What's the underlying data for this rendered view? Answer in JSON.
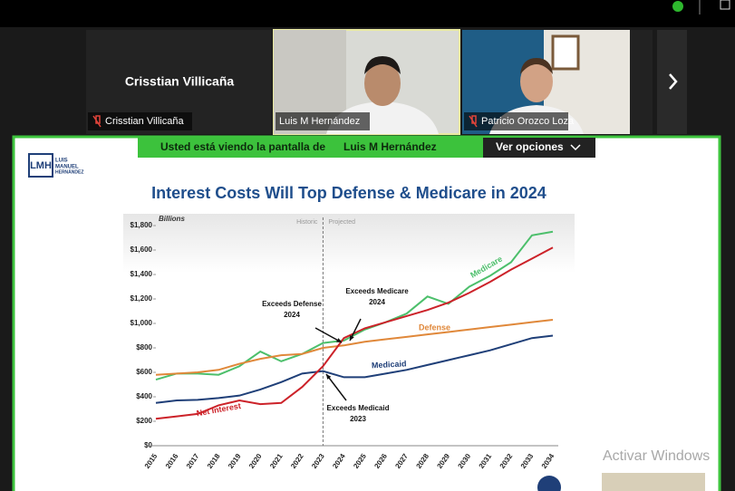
{
  "meeting": {
    "participants": [
      {
        "display_name": "Crisstian Villicaña",
        "label": "Crisstian Villicaña"
      },
      {
        "label": "Luis M Hernández"
      },
      {
        "label": "Patricio Orozco Loza"
      }
    ],
    "banner": {
      "text": "Usted está viendo la pantalla de",
      "presenter": "Luis M Hernández",
      "button": "Ver opciones"
    },
    "logo": {
      "mark": "LMH",
      "lines": [
        "LUIS",
        "MANUEL",
        "HERNÁNDEZ"
      ]
    },
    "watermark": "Activar Windows"
  },
  "chart_data": {
    "type": "line",
    "title": "Interest Costs Will Top Defense & Medicare in 2024",
    "y_unit": "Billions",
    "divider": {
      "at": "2023",
      "left": "Historic",
      "right": "Projected"
    },
    "categories": [
      "2015",
      "2016",
      "2017",
      "2018",
      "2019",
      "2020",
      "2021",
      "2022",
      "2023",
      "2024",
      "2025",
      "2026",
      "2027",
      "2028",
      "2029",
      "2030",
      "2031",
      "2032",
      "2033",
      "2034"
    ],
    "ylim": [
      0,
      1800
    ],
    "yticks": [
      {
        "value": 0,
        "label": "$0"
      },
      {
        "value": 200,
        "label": "$200"
      },
      {
        "value": 400,
        "label": "$400"
      },
      {
        "value": 600,
        "label": "$600"
      },
      {
        "value": 800,
        "label": "$800"
      },
      {
        "value": 1000,
        "label": "$1,000"
      },
      {
        "value": 1200,
        "label": "$1,200"
      },
      {
        "value": 1400,
        "label": "$1,400"
      },
      {
        "value": 1600,
        "label": "$1,600"
      },
      {
        "value": 1800,
        "label": "$1,800"
      }
    ],
    "series": [
      {
        "name": "Medicare",
        "color": "#4cbf6b",
        "values": [
          540,
          590,
          590,
          580,
          650,
          770,
          690,
          750,
          840,
          860,
          950,
          1010,
          1080,
          1220,
          1160,
          1300,
          1390,
          1500,
          1720,
          1750
        ]
      },
      {
        "name": "Defense",
        "color": "#e0883a",
        "values": [
          580,
          590,
          600,
          620,
          670,
          710,
          740,
          750,
          800,
          820,
          850,
          870,
          890,
          910,
          930,
          950,
          970,
          990,
          1010,
          1030
        ]
      },
      {
        "name": "Medicaid",
        "color": "#1f3f78",
        "values": [
          350,
          370,
          375,
          390,
          410,
          460,
          520,
          590,
          610,
          560,
          560,
          590,
          620,
          660,
          700,
          740,
          780,
          830,
          880,
          900
        ]
      },
      {
        "name": "Net Interest",
        "color": "#cc2229",
        "values": [
          220,
          240,
          260,
          330,
          370,
          340,
          350,
          480,
          650,
          880,
          960,
          1010,
          1060,
          1110,
          1170,
          1250,
          1340,
          1440,
          1530,
          1620
        ]
      }
    ],
    "annotations": [
      {
        "lines": [
          "Exceeds Defense",
          "2024"
        ]
      },
      {
        "lines": [
          "Exceeds Medicare",
          "2024"
        ]
      },
      {
        "lines": [
          "Exceeds Medicaid",
          "2023"
        ]
      }
    ]
  }
}
